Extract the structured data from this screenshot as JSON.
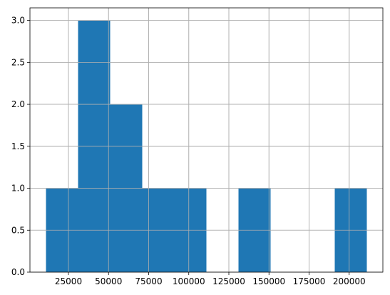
{
  "chart_data": {
    "type": "bar",
    "subtype": "histogram",
    "title": "",
    "xlabel": "",
    "ylabel": "",
    "grid": true,
    "bar_color": "#1f77b4",
    "bins": [
      {
        "x_start": 11000,
        "x_end": 31000,
        "count": 1
      },
      {
        "x_start": 31000,
        "x_end": 51000,
        "count": 3
      },
      {
        "x_start": 51000,
        "x_end": 71000,
        "count": 2
      },
      {
        "x_start": 71000,
        "x_end": 91000,
        "count": 1
      },
      {
        "x_start": 91000,
        "x_end": 111000,
        "count": 1
      },
      {
        "x_start": 111000,
        "x_end": 131000,
        "count": 0
      },
      {
        "x_start": 131000,
        "x_end": 151000,
        "count": 1
      },
      {
        "x_start": 151000,
        "x_end": 171000,
        "count": 0
      },
      {
        "x_start": 171000,
        "x_end": 191000,
        "count": 0
      },
      {
        "x_start": 191000,
        "x_end": 211000,
        "count": 1
      }
    ],
    "xlim": [
      1000,
      221000
    ],
    "ylim": [
      0,
      3.15
    ],
    "x_ticks": [
      25000,
      50000,
      75000,
      100000,
      125000,
      150000,
      175000,
      200000
    ],
    "x_tick_labels": [
      "25000",
      "50000",
      "75000",
      "100000",
      "125000",
      "150000",
      "175000",
      "200000"
    ],
    "y_ticks": [
      0,
      0.5,
      1,
      1.5,
      2,
      2.5,
      3
    ],
    "y_tick_labels": [
      "0.0",
      "0.5",
      "1.0",
      "1.5",
      "2.0",
      "2.5",
      "3.0"
    ]
  }
}
